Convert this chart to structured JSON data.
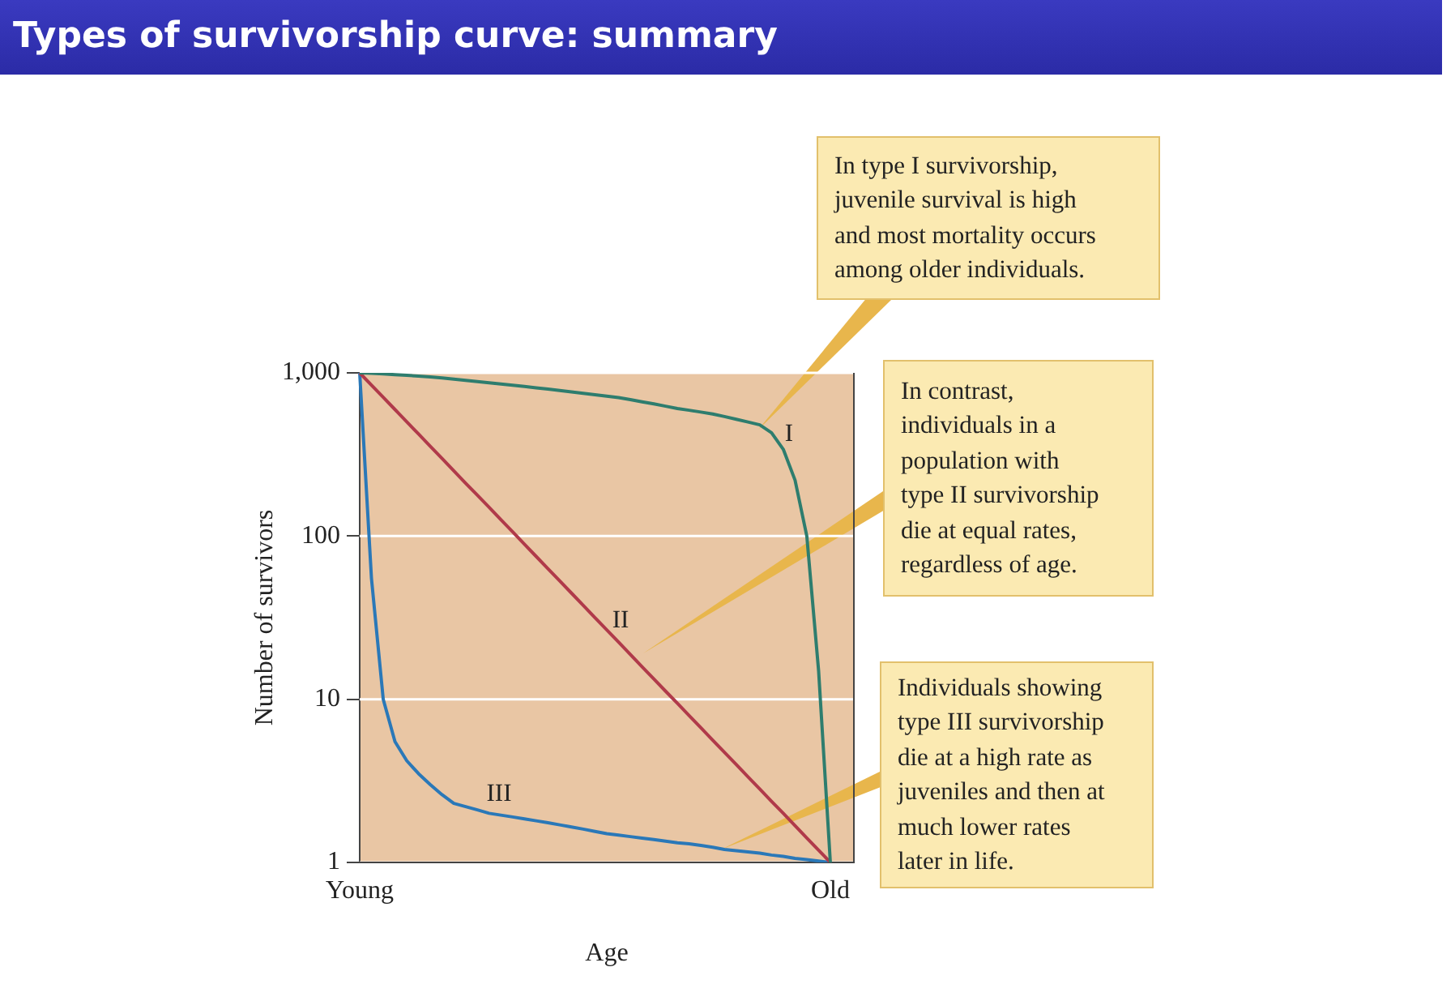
{
  "chart_data": {
    "type": "line",
    "title": "Types of survivorship curve: summary",
    "xlabel": "Age",
    "ylabel": "Number of survivors",
    "categories": [
      "Young",
      null,
      null,
      null,
      null,
      null,
      null,
      null,
      null,
      null,
      null,
      null,
      null,
      null,
      null,
      null,
      null,
      null,
      null,
      null,
      null,
      null,
      null,
      null,
      null,
      null,
      null,
      null,
      null,
      null,
      null,
      null,
      null,
      null,
      null,
      null,
      null,
      null,
      null,
      null,
      "Old",
      null,
      null
    ],
    "ylim": [
      1,
      1000
    ],
    "yticks": [
      1,
      10,
      100,
      {
        "value": 1000,
        "label": "1,000"
      }
    ],
    "log": "y",
    "grid": "y",
    "legend": false,
    "marker": "none",
    "line_style": "solid",
    "series": [
      {
        "color": "#2e7d6e",
        "values": [
          1000,
          995,
          985,
          975,
          965,
          955,
          945,
          930,
          915,
          900,
          885,
          870,
          855,
          840,
          825,
          810,
          795,
          780,
          765,
          750,
          735,
          720,
          705,
          685,
          665,
          645,
          625,
          605,
          590,
          575,
          560,
          540,
          520,
          500,
          480,
          430,
          340,
          220,
          100,
          15,
          1,
          null,
          null
        ]
      },
      {
        "color": "#b03a4a",
        "values": [
          1000,
          841,
          708,
          596,
          501,
          422,
          355,
          299,
          251,
          211,
          178,
          150,
          126,
          106,
          89.1,
          75,
          63.1,
          53.1,
          44.7,
          37.6,
          31.6,
          26.6,
          22.4,
          18.8,
          15.8,
          13.3,
          11.2,
          9.44,
          7.94,
          6.68,
          5.62,
          4.73,
          3.98,
          3.35,
          2.82,
          2.37,
          2,
          1.68,
          1.41,
          1.19,
          1,
          null,
          null
        ]
      },
      {
        "color": "#2a78b8",
        "values": [
          1000,
          55,
          10,
          5.5,
          4.2,
          3.5,
          3,
          2.6,
          2.3,
          2.2,
          2.1,
          2,
          1.95,
          1.9,
          1.85,
          1.8,
          1.75,
          1.7,
          1.65,
          1.6,
          1.55,
          1.5,
          1.47,
          1.44,
          1.41,
          1.38,
          1.35,
          1.32,
          1.3,
          1.27,
          1.24,
          1.2,
          1.18,
          1.16,
          1.14,
          1.11,
          1.09,
          1.06,
          1.04,
          1.02,
          1,
          null,
          null
        ]
      }
    ],
    "annotations": [
      "I",
      "II",
      "III",
      "In type I survivorship,\njuvenile survival is high\nand most mortality occurs\namong older individuals.",
      "In contrast,\nindividuals in a\npopulation with\ntype II survivorship\ndie at equal rates,\nregardless of age.",
      "Individuals showing\ntype III survivorship\ndie at a high rate as\njuveniles and then at\nmuch lower rates\nlater in life."
    ]
  }
}
